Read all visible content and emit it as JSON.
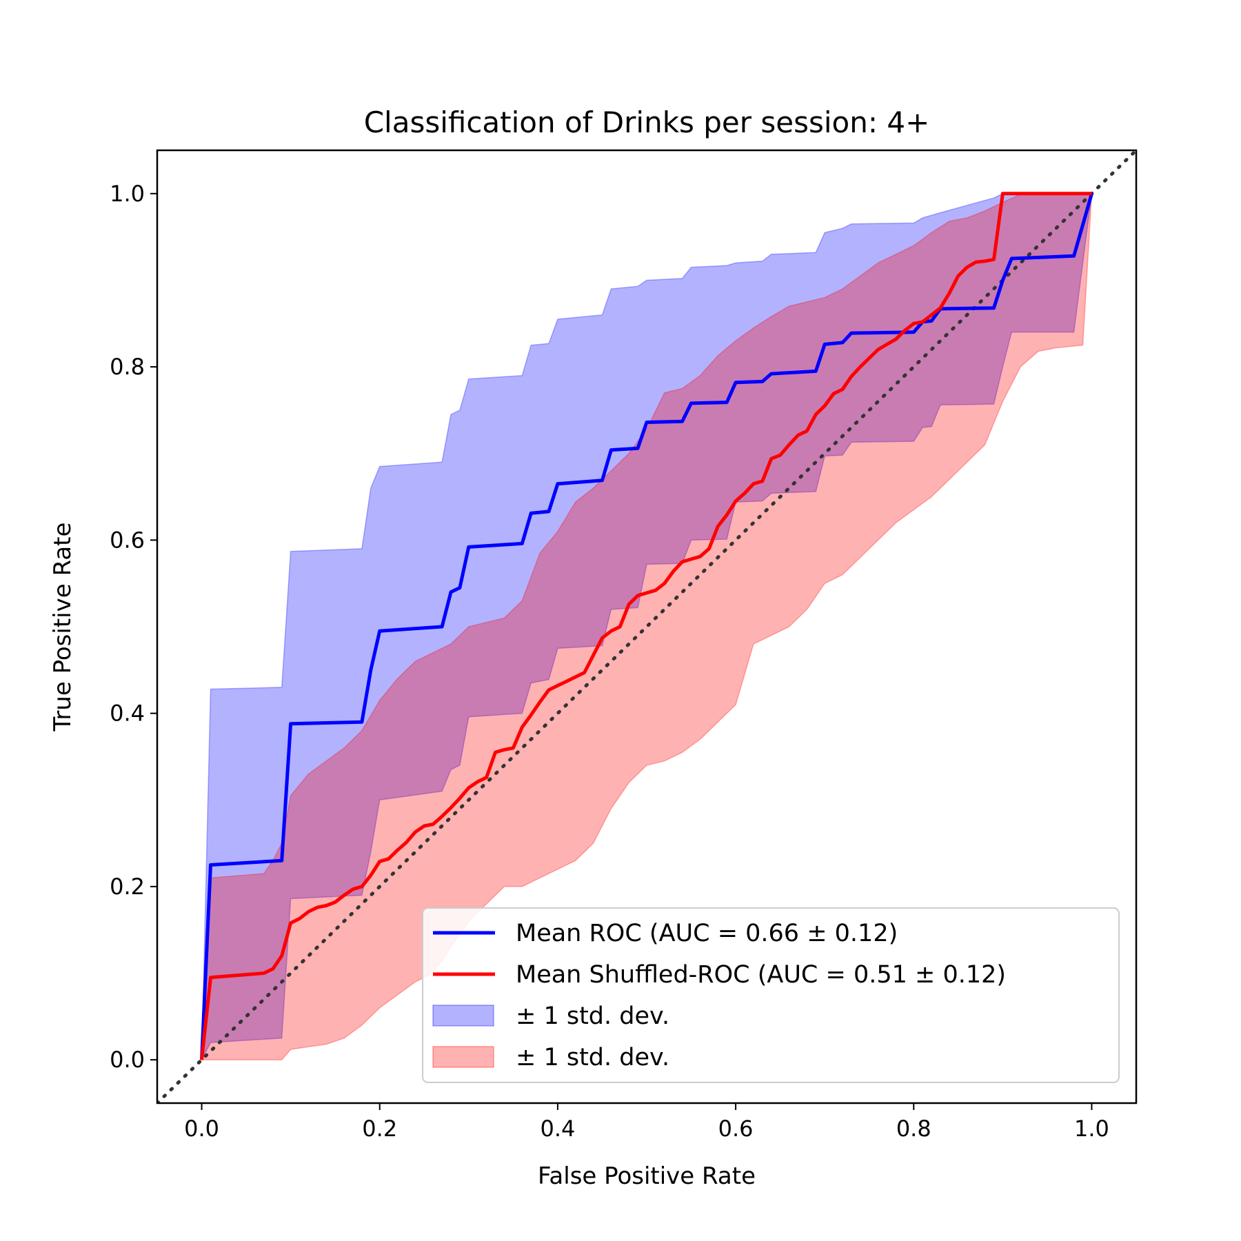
{
  "chart_data": {
    "type": "line",
    "title": "Classification of Drinks per session: 4+",
    "xlabel": "False Positive Rate",
    "ylabel": "True Positive Rate",
    "xlim": [
      -0.05,
      1.05
    ],
    "ylim": [
      -0.05,
      1.05
    ],
    "xticks": [
      "0.0",
      "0.2",
      "0.4",
      "0.6",
      "0.8",
      "1.0"
    ],
    "yticks": [
      "0.0",
      "0.2",
      "0.4",
      "0.6",
      "0.8",
      "1.0"
    ],
    "grid": false,
    "legend_position": "lower-right",
    "chance_line": {
      "x": [
        -0.05,
        1.05
      ],
      "y": [
        -0.05,
        1.05
      ],
      "color": "#333333",
      "style": "dotted"
    },
    "series": [
      {
        "name": "Mean ROC (AUC = 0.66 ± 0.12)",
        "color": "#0000ff",
        "x": [
          0.0,
          0.01,
          0.09,
          0.1,
          0.18,
          0.19,
          0.2,
          0.27,
          0.28,
          0.29,
          0.3,
          0.36,
          0.37,
          0.39,
          0.4,
          0.45,
          0.46,
          0.49,
          0.5,
          0.54,
          0.55,
          0.59,
          0.6,
          0.63,
          0.64,
          0.69,
          0.7,
          0.72,
          0.73,
          0.8,
          0.81,
          0.82,
          0.83,
          0.89,
          0.9,
          0.91,
          0.98,
          1.0
        ],
        "y": [
          0.0,
          0.225,
          0.23,
          0.388,
          0.39,
          0.45,
          0.495,
          0.5,
          0.54,
          0.545,
          0.592,
          0.596,
          0.631,
          0.633,
          0.665,
          0.669,
          0.704,
          0.706,
          0.736,
          0.737,
          0.758,
          0.759,
          0.782,
          0.783,
          0.792,
          0.795,
          0.826,
          0.828,
          0.839,
          0.84,
          0.852,
          0.853,
          0.867,
          0.868,
          0.9,
          0.925,
          0.928,
          1.0
        ]
      },
      {
        "name": "Mean Shuffled-ROC (AUC = 0.51 ± 0.12)",
        "color": "#ff0000",
        "x": [
          0.0,
          0.01,
          0.07,
          0.08,
          0.09,
          0.1,
          0.11,
          0.12,
          0.13,
          0.14,
          0.15,
          0.16,
          0.17,
          0.18,
          0.19,
          0.2,
          0.21,
          0.22,
          0.23,
          0.24,
          0.25,
          0.26,
          0.27,
          0.28,
          0.29,
          0.3,
          0.31,
          0.32,
          0.33,
          0.34,
          0.35,
          0.36,
          0.37,
          0.38,
          0.39,
          0.4,
          0.41,
          0.42,
          0.43,
          0.44,
          0.45,
          0.46,
          0.47,
          0.48,
          0.49,
          0.5,
          0.51,
          0.52,
          0.53,
          0.54,
          0.55,
          0.56,
          0.57,
          0.58,
          0.59,
          0.6,
          0.61,
          0.62,
          0.63,
          0.64,
          0.65,
          0.66,
          0.67,
          0.68,
          0.69,
          0.7,
          0.71,
          0.72,
          0.73,
          0.74,
          0.75,
          0.76,
          0.77,
          0.78,
          0.79,
          0.8,
          0.81,
          0.82,
          0.83,
          0.84,
          0.85,
          0.86,
          0.87,
          0.88,
          0.89,
          0.9,
          0.91,
          0.92,
          0.93,
          0.99,
          1.0
        ],
        "y": [
          0.0,
          0.095,
          0.1,
          0.105,
          0.12,
          0.158,
          0.163,
          0.171,
          0.176,
          0.178,
          0.182,
          0.19,
          0.197,
          0.2,
          0.213,
          0.229,
          0.232,
          0.242,
          0.251,
          0.263,
          0.27,
          0.272,
          0.281,
          0.291,
          0.302,
          0.314,
          0.321,
          0.326,
          0.355,
          0.358,
          0.36,
          0.384,
          0.398,
          0.413,
          0.427,
          0.432,
          0.437,
          0.442,
          0.447,
          0.467,
          0.487,
          0.495,
          0.5,
          0.526,
          0.536,
          0.539,
          0.542,
          0.55,
          0.564,
          0.575,
          0.578,
          0.581,
          0.59,
          0.616,
          0.629,
          0.645,
          0.654,
          0.665,
          0.668,
          0.694,
          0.698,
          0.71,
          0.721,
          0.726,
          0.745,
          0.755,
          0.769,
          0.774,
          0.789,
          0.8,
          0.81,
          0.82,
          0.826,
          0.832,
          0.842,
          0.85,
          0.852,
          0.86,
          0.868,
          0.885,
          0.905,
          0.915,
          0.921,
          0.922,
          0.924,
          1.0,
          1.0,
          1.0,
          1.0,
          1.0,
          1.0
        ]
      }
    ],
    "bands": [
      {
        "name": "± 1 std. dev.",
        "color": "#0000ff",
        "x": [
          0.0,
          0.01,
          0.09,
          0.1,
          0.18,
          0.19,
          0.2,
          0.27,
          0.28,
          0.29,
          0.3,
          0.36,
          0.37,
          0.39,
          0.4,
          0.45,
          0.46,
          0.49,
          0.5,
          0.54,
          0.55,
          0.59,
          0.6,
          0.63,
          0.64,
          0.69,
          0.7,
          0.72,
          0.73,
          0.8,
          0.81,
          0.82,
          0.83,
          0.89,
          0.9,
          0.91,
          0.98,
          1.0
        ],
        "upper": [
          0.0,
          0.428,
          0.43,
          0.587,
          0.59,
          0.66,
          0.685,
          0.69,
          0.745,
          0.75,
          0.786,
          0.79,
          0.825,
          0.827,
          0.855,
          0.86,
          0.89,
          0.893,
          0.9,
          0.902,
          0.915,
          0.917,
          0.92,
          0.922,
          0.93,
          0.932,
          0.955,
          0.96,
          0.965,
          0.966,
          0.972,
          0.975,
          0.978,
          0.995,
          1.0,
          1.0,
          1.0,
          1.0
        ],
        "lower": [
          0.0,
          0.02,
          0.025,
          0.186,
          0.19,
          0.24,
          0.3,
          0.31,
          0.335,
          0.34,
          0.396,
          0.4,
          0.435,
          0.439,
          0.475,
          0.478,
          0.52,
          0.522,
          0.572,
          0.573,
          0.6,
          0.601,
          0.644,
          0.645,
          0.654,
          0.656,
          0.697,
          0.698,
          0.713,
          0.714,
          0.73,
          0.731,
          0.756,
          0.757,
          0.8,
          0.84,
          0.84,
          1.0
        ]
      },
      {
        "name": "± 1 std. dev.",
        "color": "#ff0000",
        "x": [
          0.0,
          0.01,
          0.07,
          0.08,
          0.09,
          0.1,
          0.12,
          0.14,
          0.16,
          0.18,
          0.2,
          0.22,
          0.24,
          0.26,
          0.28,
          0.3,
          0.32,
          0.34,
          0.36,
          0.38,
          0.4,
          0.42,
          0.44,
          0.46,
          0.48,
          0.5,
          0.52,
          0.54,
          0.56,
          0.58,
          0.6,
          0.62,
          0.64,
          0.66,
          0.68,
          0.7,
          0.72,
          0.74,
          0.76,
          0.78,
          0.8,
          0.82,
          0.84,
          0.86,
          0.88,
          0.9,
          0.92,
          0.94,
          0.96,
          0.99,
          1.0
        ],
        "upper": [
          0.0,
          0.21,
          0.215,
          0.23,
          0.25,
          0.305,
          0.33,
          0.345,
          0.36,
          0.38,
          0.415,
          0.44,
          0.46,
          0.47,
          0.48,
          0.5,
          0.505,
          0.51,
          0.53,
          0.585,
          0.61,
          0.644,
          0.66,
          0.68,
          0.7,
          0.728,
          0.77,
          0.775,
          0.79,
          0.813,
          0.83,
          0.845,
          0.858,
          0.87,
          0.875,
          0.88,
          0.89,
          0.905,
          0.92,
          0.93,
          0.94,
          0.955,
          0.968,
          0.972,
          0.98,
          0.99,
          0.999,
          1.0,
          1.0,
          1.0,
          1.0
        ],
        "lower": [
          0.0,
          0.0,
          0.0,
          0.0,
          0.0,
          0.012,
          0.015,
          0.018,
          0.025,
          0.04,
          0.06,
          0.075,
          0.09,
          0.1,
          0.13,
          0.16,
          0.18,
          0.2,
          0.2,
          0.21,
          0.22,
          0.23,
          0.25,
          0.29,
          0.32,
          0.34,
          0.345,
          0.355,
          0.37,
          0.39,
          0.41,
          0.48,
          0.49,
          0.5,
          0.52,
          0.55,
          0.56,
          0.58,
          0.6,
          0.62,
          0.635,
          0.65,
          0.67,
          0.69,
          0.71,
          0.76,
          0.8,
          0.818,
          0.822,
          0.825,
          1.0
        ]
      }
    ]
  }
}
